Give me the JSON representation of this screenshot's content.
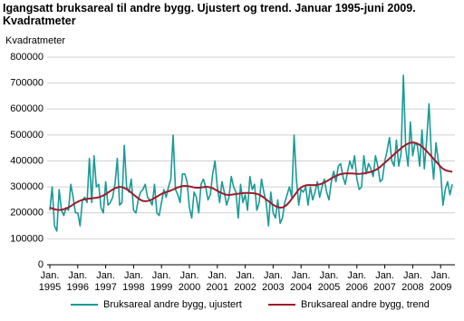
{
  "chart_data": {
    "type": "line",
    "title": "Igangsatt bruksareal til andre bygg. Ujustert og trend. Januar 1995-juni 2009. Kvadratmeter",
    "y_label": "Kvadratmeter",
    "x": [
      "1995-01",
      "1995-02",
      "1995-03",
      "1995-04",
      "1995-05",
      "1995-06",
      "1995-07",
      "1995-08",
      "1995-09",
      "1995-10",
      "1995-11",
      "1995-12",
      "1996-01",
      "1996-02",
      "1996-03",
      "1996-04",
      "1996-05",
      "1996-06",
      "1996-07",
      "1996-08",
      "1996-09",
      "1996-10",
      "1996-11",
      "1996-12",
      "1997-01",
      "1997-02",
      "1997-03",
      "1997-04",
      "1997-05",
      "1997-06",
      "1997-07",
      "1997-08",
      "1997-09",
      "1997-10",
      "1997-11",
      "1997-12",
      "1998-01",
      "1998-02",
      "1998-03",
      "1998-04",
      "1998-05",
      "1998-06",
      "1998-07",
      "1998-08",
      "1998-09",
      "1998-10",
      "1998-11",
      "1998-12",
      "1999-01",
      "1999-02",
      "1999-03",
      "1999-04",
      "1999-05",
      "1999-06",
      "1999-07",
      "1999-08",
      "1999-09",
      "1999-10",
      "1999-11",
      "1999-12",
      "2000-01",
      "2000-02",
      "2000-03",
      "2000-04",
      "2000-05",
      "2000-06",
      "2000-07",
      "2000-08",
      "2000-09",
      "2000-10",
      "2000-11",
      "2000-12",
      "2001-01",
      "2001-02",
      "2001-03",
      "2001-04",
      "2001-05",
      "2001-06",
      "2001-07",
      "2001-08",
      "2001-09",
      "2001-10",
      "2001-11",
      "2001-12",
      "2002-01",
      "2002-02",
      "2002-03",
      "2002-04",
      "2002-05",
      "2002-06",
      "2002-07",
      "2002-08",
      "2002-09",
      "2002-10",
      "2002-11",
      "2002-12",
      "2003-01",
      "2003-02",
      "2003-03",
      "2003-04",
      "2003-05",
      "2003-06",
      "2003-07",
      "2003-08",
      "2003-09",
      "2003-10",
      "2003-11",
      "2003-12",
      "2004-01",
      "2004-02",
      "2004-03",
      "2004-04",
      "2004-05",
      "2004-06",
      "2004-07",
      "2004-08",
      "2004-09",
      "2004-10",
      "2004-11",
      "2004-12",
      "2005-01",
      "2005-02",
      "2005-03",
      "2005-04",
      "2005-05",
      "2005-06",
      "2005-07",
      "2005-08",
      "2005-09",
      "2005-10",
      "2005-11",
      "2005-12",
      "2006-01",
      "2006-02",
      "2006-03",
      "2006-04",
      "2006-05",
      "2006-06",
      "2006-07",
      "2006-08",
      "2006-09",
      "2006-10",
      "2006-11",
      "2006-12",
      "2007-01",
      "2007-02",
      "2007-03",
      "2007-04",
      "2007-05",
      "2007-06",
      "2007-07",
      "2007-08",
      "2007-09",
      "2007-10",
      "2007-11",
      "2007-12",
      "2008-01",
      "2008-02",
      "2008-03",
      "2008-04",
      "2008-05",
      "2008-06",
      "2008-07",
      "2008-08",
      "2008-09",
      "2008-10",
      "2008-11",
      "2008-12",
      "2009-01",
      "2009-02",
      "2009-03",
      "2009-04",
      "2009-05",
      "2009-06"
    ],
    "series": [
      {
        "name": "Bruksareal andre bygg, ujustert",
        "color": "#1a9a96",
        "values": [
          210000,
          300000,
          150000,
          130000,
          290000,
          210000,
          190000,
          220000,
          210000,
          310000,
          260000,
          200000,
          200000,
          150000,
          250000,
          260000,
          240000,
          410000,
          240000,
          420000,
          300000,
          310000,
          220000,
          200000,
          320000,
          230000,
          240000,
          260000,
          310000,
          410000,
          230000,
          240000,
          460000,
          300000,
          280000,
          330000,
          210000,
          200000,
          250000,
          280000,
          290000,
          310000,
          260000,
          250000,
          230000,
          310000,
          200000,
          190000,
          240000,
          290000,
          260000,
          300000,
          330000,
          500000,
          290000,
          270000,
          240000,
          350000,
          350000,
          320000,
          220000,
          180000,
          280000,
          260000,
          200000,
          310000,
          330000,
          300000,
          250000,
          270000,
          350000,
          400000,
          300000,
          240000,
          320000,
          280000,
          230000,
          260000,
          340000,
          300000,
          280000,
          180000,
          310000,
          240000,
          270000,
          210000,
          340000,
          290000,
          310000,
          210000,
          240000,
          330000,
          280000,
          240000,
          150000,
          280000,
          200000,
          180000,
          250000,
          160000,
          180000,
          240000,
          270000,
          300000,
          260000,
          500000,
          330000,
          230000,
          290000,
          280000,
          300000,
          230000,
          300000,
          250000,
          280000,
          320000,
          260000,
          300000,
          330000,
          280000,
          250000,
          320000,
          360000,
          320000,
          380000,
          390000,
          340000,
          310000,
          360000,
          400000,
          370000,
          420000,
          330000,
          290000,
          300000,
          420000,
          350000,
          390000,
          370000,
          340000,
          420000,
          380000,
          320000,
          330000,
          400000,
          440000,
          490000,
          400000,
          380000,
          480000,
          380000,
          430000,
          730000,
          450000,
          380000,
          550000,
          420000,
          470000,
          460000,
          380000,
          520000,
          370000,
          480000,
          620000,
          430000,
          330000,
          470000,
          400000,
          360000,
          230000,
          290000,
          320000,
          270000,
          310000
        ]
      },
      {
        "name": "Bruksareal andre bygg, trend",
        "color": "#9e1b2b",
        "values": [
          220000,
          217000,
          214000,
          212000,
          211000,
          212000,
          214000,
          217000,
          221000,
          226000,
          232000,
          238000,
          243000,
          247000,
          250000,
          252000,
          254000,
          255000,
          256000,
          257000,
          258000,
          260000,
          263000,
          267000,
          272000,
          278000,
          284000,
          290000,
          295000,
          298000,
          300000,
          299000,
          296000,
          291000,
          285000,
          278000,
          270000,
          263000,
          256000,
          250000,
          246000,
          245000,
          246000,
          248000,
          252000,
          257000,
          262000,
          268000,
          273000,
          277000,
          280000,
          283000,
          286000,
          290000,
          294000,
          298000,
          301000,
          303000,
          304000,
          303000,
          302000,
          300000,
          298000,
          297000,
          297000,
          298000,
          299000,
          300000,
          300000,
          298000,
          295000,
          290000,
          285000,
          280000,
          276000,
          272000,
          270000,
          269000,
          270000,
          271000,
          273000,
          274000,
          275000,
          276000,
          277000,
          277000,
          277000,
          276000,
          275000,
          273000,
          270000,
          265000,
          259000,
          252000,
          245000,
          238000,
          231000,
          226000,
          222000,
          220000,
          221000,
          225000,
          232000,
          242000,
          254000,
          266000,
          278000,
          290000,
          298000,
          303000,
          306000,
          307000,
          307000,
          307000,
          307000,
          308000,
          310000,
          313000,
          317000,
          322000,
          327000,
          333000,
          338000,
          342000,
          346000,
          349000,
          351000,
          352000,
          352000,
          352000,
          352000,
          351000,
          350000,
          350000,
          351000,
          352000,
          354000,
          356000,
          358000,
          361000,
          365000,
          370000,
          377000,
          385000,
          393000,
          401000,
          409000,
          417000,
          425000,
          433000,
          441000,
          449000,
          456000,
          462000,
          467000,
          470000,
          471000,
          470000,
          467000,
          462000,
          455000,
          447000,
          438000,
          428000,
          418000,
          408000,
          398000,
          388000,
          378000,
          370000,
          365000,
          362000,
          360000,
          358000
        ]
      }
    ],
    "ylim": [
      0,
      800000
    ],
    "yticks": [
      0,
      100000,
      200000,
      300000,
      400000,
      500000,
      600000,
      700000,
      800000
    ],
    "xticks": [
      {
        "value": "1995-01",
        "label": [
          "Jan.",
          "1995"
        ]
      },
      {
        "value": "1996-01",
        "label": [
          "Jan.",
          "1996"
        ]
      },
      {
        "value": "1997-01",
        "label": [
          "Jan.",
          "1997"
        ]
      },
      {
        "value": "1998-01",
        "label": [
          "Jan.",
          "1998"
        ]
      },
      {
        "value": "1999-01",
        "label": [
          "Jan.",
          "1999"
        ]
      },
      {
        "value": "2000-01",
        "label": [
          "Jan.",
          "2000"
        ]
      },
      {
        "value": "2001-01",
        "label": [
          "Jan.",
          "2001"
        ]
      },
      {
        "value": "2002-01",
        "label": [
          "Jan.",
          "2002"
        ]
      },
      {
        "value": "2003-01",
        "label": [
          "Jan.",
          "2003"
        ]
      },
      {
        "value": "2004-01",
        "label": [
          "Jan.",
          "2004"
        ]
      },
      {
        "value": "2005-01",
        "label": [
          "Jan.",
          "2005"
        ]
      },
      {
        "value": "2006-01",
        "label": [
          "Jan.",
          "2006"
        ]
      },
      {
        "value": "2007-01",
        "label": [
          "Jan.",
          "2007"
        ]
      },
      {
        "value": "2008-01",
        "label": [
          "Jan.",
          "2008"
        ]
      },
      {
        "value": "2009-01",
        "label": [
          "Jan.",
          "2009"
        ]
      }
    ],
    "grid": true,
    "legend": "bottom"
  }
}
